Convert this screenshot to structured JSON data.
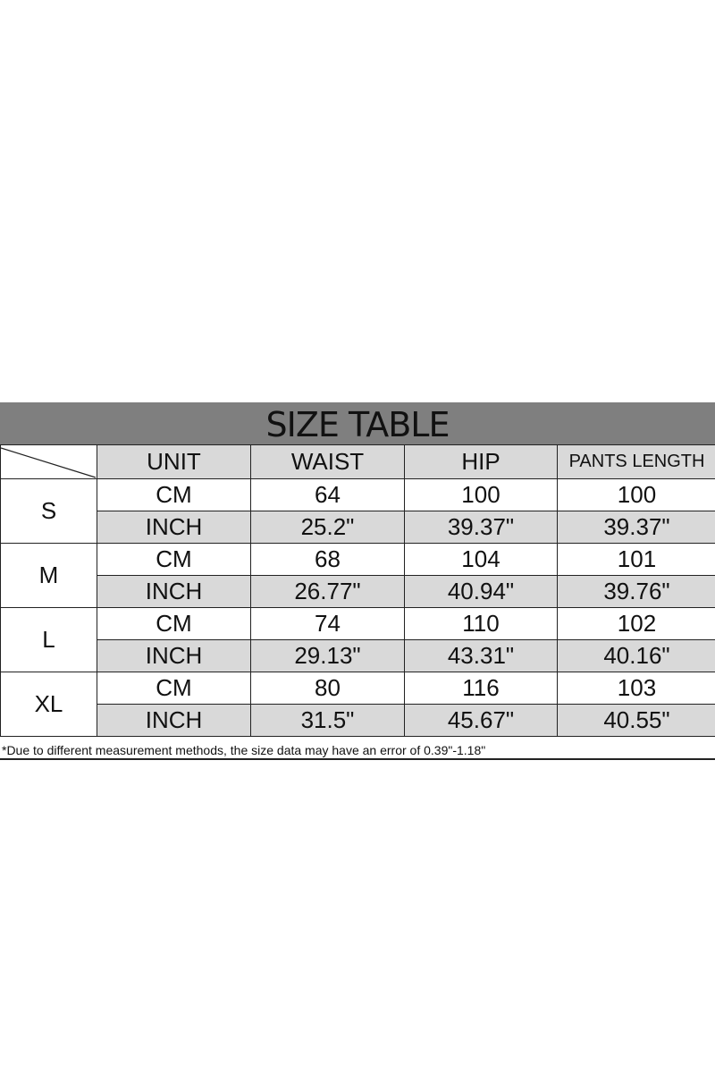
{
  "title": "SIZE TABLE",
  "headers": [
    "UNIT",
    "WAIST",
    "HIP",
    "PANTS LENGTH"
  ],
  "rows": [
    {
      "size": "S",
      "cm": {
        "unit": "CM",
        "values": [
          "64",
          "100",
          "100"
        ]
      },
      "inch": {
        "unit": "INCH",
        "values": [
          "25.2\"",
          "39.37\"",
          "39.37\""
        ]
      }
    },
    {
      "size": "M",
      "cm": {
        "unit": "CM",
        "values": [
          "68",
          "104",
          "101"
        ]
      },
      "inch": {
        "unit": "INCH",
        "values": [
          "26.77\"",
          "40.94\"",
          "39.76\""
        ]
      }
    },
    {
      "size": "L",
      "cm": {
        "unit": "CM",
        "values": [
          "74",
          "110",
          "102"
        ]
      },
      "inch": {
        "unit": "INCH",
        "values": [
          "29.13\"",
          "43.31\"",
          "40.16\""
        ]
      }
    },
    {
      "size": "XL",
      "cm": {
        "unit": "CM",
        "values": [
          "80",
          "116",
          "103"
        ]
      },
      "inch": {
        "unit": "INCH",
        "values": [
          "31.5\"",
          "45.67\"",
          "40.55\""
        ]
      }
    }
  ],
  "note": "*Due to different measurement methods, the size data may have an error of 0.39\"-1.18\"",
  "colors": {
    "title_bg": "#7f7f7f",
    "cell_gray": "#d9d9d9"
  }
}
